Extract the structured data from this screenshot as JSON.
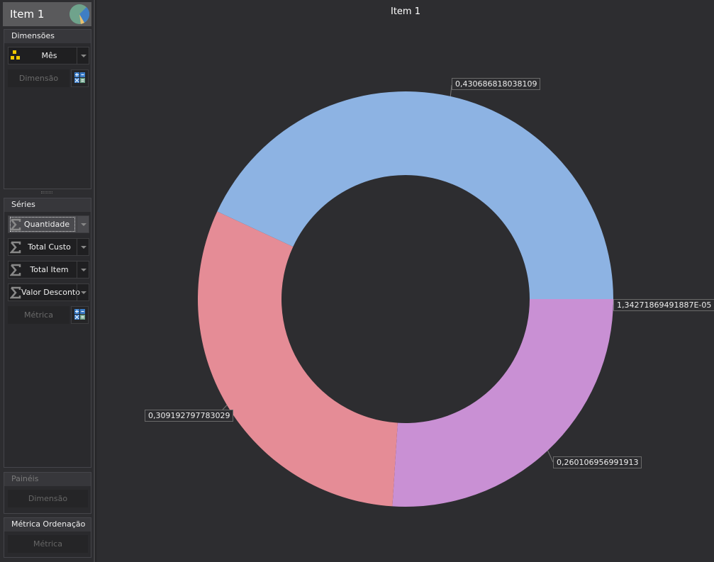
{
  "item": {
    "title": "Item 1",
    "icon": "pie-chart-icon"
  },
  "dimensoes": {
    "header": "Dimensões",
    "fields": [
      {
        "label": "Mês",
        "icon": "hierarchy-icon"
      }
    ],
    "placeholder": "Dimensão"
  },
  "series": {
    "header": "Séries",
    "fields": [
      {
        "label": "Quantidade",
        "icon": "sigma-icon",
        "selected": true
      },
      {
        "label": "Total Custo",
        "icon": "sigma-icon"
      },
      {
        "label": "Total Item",
        "icon": "sigma-icon"
      },
      {
        "label": "Valor Desconto",
        "icon": "sigma-icon"
      }
    ],
    "placeholder": "Métrica"
  },
  "paineis": {
    "header": "Painéis",
    "placeholder": "Dimensão"
  },
  "ordenacao": {
    "header": "Métrica Ordenação",
    "placeholder": "Métrica"
  },
  "chart_data": {
    "type": "pie",
    "variant": "donut",
    "title": "Item 1",
    "start_angle": "east, clockwise",
    "slices": [
      {
        "label": "1,34271869491887E-05",
        "value": 1.34271869491887e-05,
        "color": "#8db3e2"
      },
      {
        "label": "0,260106956991913",
        "value": 0.260106956991913,
        "color": "#c990d4"
      },
      {
        "label": "0,309192797783029",
        "value": 0.309192797783029,
        "color": "#e58c96"
      },
      {
        "label": "0,430686818038109",
        "value": 0.430686818038109,
        "color": "#8db3e3"
      }
    ]
  }
}
